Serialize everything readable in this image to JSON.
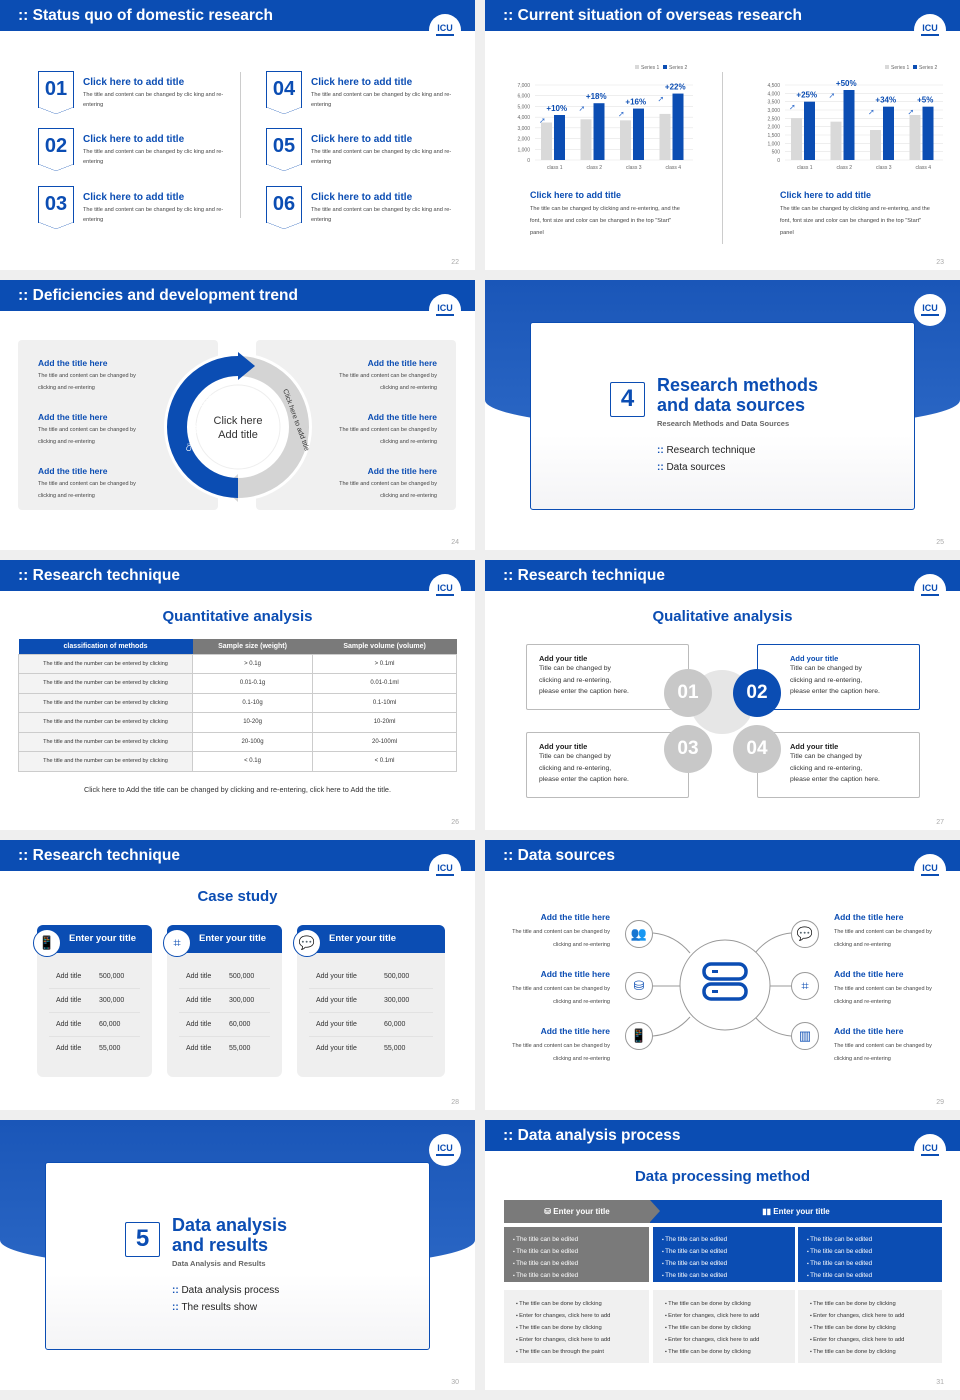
{
  "logo": {
    "text": "ICU"
  },
  "colors": {
    "primary": "#0b4db3",
    "series1": "#d9d9d9",
    "series2": "#0b4db3",
    "gray_box": "#7a7a7a"
  },
  "s22": {
    "page": "22",
    "header": "Status quo of domestic research",
    "items": [
      {
        "num": "01",
        "title": "Click here to add title",
        "body": "The title and content can be changed by clic king and re-entering"
      },
      {
        "num": "02",
        "title": "Click here to add title",
        "body": "The title and content can be changed by clic king and re-entering"
      },
      {
        "num": "03",
        "title": "Click here to add title",
        "body": "The title and content can be changed by clic king and re-entering"
      },
      {
        "num": "04",
        "title": "Click here to add title",
        "body": "The title and content can be changed by clic king and re-entering"
      },
      {
        "num": "05",
        "title": "Click here to add title",
        "body": "The title and content can be changed by clic king and re-entering"
      },
      {
        "num": "06",
        "title": "Click here to add title",
        "body": "The title and content can be changed by clic king and re-entering"
      }
    ]
  },
  "s23": {
    "page": "23",
    "header": "Current situation of overseas research",
    "panels": [
      {
        "title": "Click here to add title",
        "body": "The title can be changed by clicking and re-entering, and the font, font size and color can be changed in the top \"Start\" panel"
      },
      {
        "title": "Click here to add title",
        "body": "The title can be changed by clicking and re-entering, and the font, font size and color can be changed in the top \"Start\" panel"
      }
    ]
  },
  "chart_data": [
    {
      "type": "bar",
      "categories": [
        "class 1",
        "class 2",
        "class 3",
        "class 4"
      ],
      "series": [
        {
          "name": "Series 1",
          "values": [
            3500,
            3800,
            3700,
            4300
          ]
        },
        {
          "name": "Series 2",
          "values": [
            4200,
            5300,
            4800,
            6200
          ]
        }
      ],
      "annotations": [
        "+10%",
        "+18%",
        "+16%",
        "+22%"
      ],
      "yticks": [
        "0",
        "1,000",
        "2,000",
        "3,000",
        "4,000",
        "5,000",
        "6,000",
        "7,000"
      ],
      "ylim": [
        0,
        7000
      ],
      "legend": "top-right",
      "grid": true
    },
    {
      "type": "bar",
      "categories": [
        "class 1",
        "class 2",
        "class 3",
        "class 4"
      ],
      "series": [
        {
          "name": "Series 1",
          "values": [
            2500,
            2300,
            1800,
            2700
          ]
        },
        {
          "name": "Series 2",
          "values": [
            3500,
            4200,
            3200,
            3200
          ]
        }
      ],
      "annotations": [
        "+25%",
        "+50%",
        "+34%",
        "+5%"
      ],
      "yticks": [
        "0",
        "500",
        "1,000",
        "1,500",
        "2,000",
        "2,500",
        "3,000",
        "3,500",
        "4,000",
        "4,500"
      ],
      "ylim": [
        0,
        4500
      ],
      "legend": "top-right",
      "grid": true
    }
  ],
  "s24": {
    "page": "24",
    "header": "Deficiencies and development trend",
    "center_line1": "Click here",
    "center_line2": "Add title",
    "arc_left": "Click here to add title",
    "arc_right": "Click here to add title",
    "left": [
      {
        "title": "Add the title here",
        "body": "The title and content can be changed by clicking and re-entering"
      },
      {
        "title": "Add the title here",
        "body": "The title and content can be changed by clicking and re-entering"
      },
      {
        "title": "Add the title here",
        "body": "The title and content can be changed by clicking and re-entering"
      }
    ],
    "right": [
      {
        "title": "Add the title here",
        "body": "The title and content can be changed by clicking and re-entering"
      },
      {
        "title": "Add the title here",
        "body": "The title and content can be changed by clicking and re-entering"
      },
      {
        "title": "Add the title here",
        "body": "The title and content can be changed by clicking and re-entering"
      }
    ]
  },
  "s25": {
    "page": "25",
    "number": "4",
    "title_line1": "Research methods",
    "title_line2": "and data sources",
    "subtitle": "Research Methods and Data Sources",
    "bullets": [
      "Research technique",
      "Data sources"
    ]
  },
  "s26": {
    "page": "26",
    "header": "Research technique",
    "subtitle": "Quantitative analysis",
    "columns": [
      "classification of methods",
      "Sample size (weight)",
      "Sample volume (volume)"
    ],
    "rows": [
      [
        "The title and the number can be entered by clicking",
        "> 0.1g",
        "> 0.1ml"
      ],
      [
        "The title and the number can be entered by clicking",
        "0.01-0.1g",
        "0.01-0.1ml"
      ],
      [
        "The title and the number can be entered by clicking",
        "0.1-10g",
        "0.1-10ml"
      ],
      [
        "The title and the number can be entered by clicking",
        "10-20g",
        "10-20ml"
      ],
      [
        "The title and the number can be entered by clicking",
        "20-100g",
        "20-100ml"
      ],
      [
        "The title and the number can be entered by clicking",
        "< 0.1g",
        "< 0.1ml"
      ]
    ],
    "caption": "Click here to Add the title can be changed by clicking and re-entering, click here to Add the title."
  },
  "s27": {
    "page": "27",
    "header": "Research technique",
    "subtitle": "Qualitative analysis",
    "items": [
      {
        "num": "01",
        "title": "Add your title",
        "body": [
          "Title can be changed by",
          "clicking and re-entering,",
          "please enter the caption here."
        ]
      },
      {
        "num": "02",
        "title": "Add your title",
        "body": [
          "Title can be changed by",
          "clicking and re-entering,",
          "please enter the caption here."
        ]
      },
      {
        "num": "03",
        "title": "Add your title",
        "body": [
          "Title can be changed by",
          "clicking and re-entering,",
          "please enter the caption here."
        ]
      },
      {
        "num": "04",
        "title": "Add your title",
        "body": [
          "Title can be changed by",
          "clicking and re-entering,",
          "please enter the caption here."
        ]
      }
    ]
  },
  "s28": {
    "page": "28",
    "header": "Research technique",
    "subtitle": "Case study",
    "cards": [
      {
        "title": "Enter your title",
        "icon": "phone-user-icon",
        "rows": [
          [
            "Add title",
            "500,000"
          ],
          [
            "Add title",
            "300,000"
          ],
          [
            "Add title",
            "60,000"
          ],
          [
            "Add title",
            "55,000"
          ]
        ]
      },
      {
        "title": "Enter your title",
        "icon": "qr-scan-icon",
        "rows": [
          [
            "Add title",
            "500,000"
          ],
          [
            "Add title",
            "300,000"
          ],
          [
            "Add title",
            "60,000"
          ],
          [
            "Add title",
            "55,000"
          ]
        ]
      },
      {
        "title": "Enter your title",
        "icon": "chat-bubbles-icon",
        "rows": [
          [
            "Add your title",
            "500,000"
          ],
          [
            "Add your title",
            "300,000"
          ],
          [
            "Add your title",
            "60,000"
          ],
          [
            "Add your title",
            "55,000"
          ]
        ]
      }
    ]
  },
  "s29": {
    "page": "29",
    "header": "Data sources",
    "center_icon": "server-icon",
    "items": [
      {
        "title": "Add the title here",
        "body": "The title and content can be changed by clicking and re-entering",
        "icon": "people-icon"
      },
      {
        "title": "Add the title here",
        "body": "The title and content can be changed by clicking and re-entering",
        "icon": "database-icon"
      },
      {
        "title": "Add the title here",
        "body": "The title and content can be changed by clicking and re-entering",
        "icon": "phone-user-icon"
      },
      {
        "title": "Add the title here",
        "body": "The title and content can be changed by clicking and re-entering",
        "icon": "chat-bubbles-icon"
      },
      {
        "title": "Add the title here",
        "body": "The title and content can be changed by clicking and re-entering",
        "icon": "qr-scan-icon"
      },
      {
        "title": "Add the title here",
        "body": "The title and content can be changed by clicking and re-entering",
        "icon": "building-chart-icon"
      }
    ]
  },
  "s30": {
    "page": "30",
    "number": "5",
    "title_line1": "Data analysis",
    "title_line2": "and results",
    "subtitle": "Data Analysis and Results",
    "bullets": [
      "Data analysis process",
      "The results show"
    ]
  },
  "s31": {
    "page": "31",
    "header": "Data analysis process",
    "subtitle": "Data processing method",
    "heads": [
      {
        "label": "Enter your title",
        "icon": "database-icon"
      },
      {
        "label": "Enter your title",
        "icon": "bar-chart-icon"
      }
    ],
    "mid": [
      [
        "The title can be edited",
        "The title can be edited",
        "The title can be edited",
        "The title can be edited"
      ],
      [
        "The title can be edited",
        "The title can be edited",
        "The title can be edited",
        "The title can be edited"
      ],
      [
        "The title can be edited",
        "The title can be edited",
        "The title can be edited",
        "The title can be edited"
      ]
    ],
    "bottom": [
      [
        "The title can be done by clicking",
        "Enter for changes, click here to add",
        "The title can be done by clicking",
        "Enter for changes, click here to add",
        "The title can be through the paint"
      ],
      [
        "The title can be done by clicking",
        "Enter for changes, click here to add",
        "The title can be done by clicking",
        "Enter for changes, click here to add",
        "The title can be done by clicking"
      ],
      [
        "The title can be done by clicking",
        "Enter for changes, click here to add",
        "The title can be done by clicking",
        "Enter for changes, click here to add",
        "The title can be done by clicking"
      ]
    ]
  }
}
